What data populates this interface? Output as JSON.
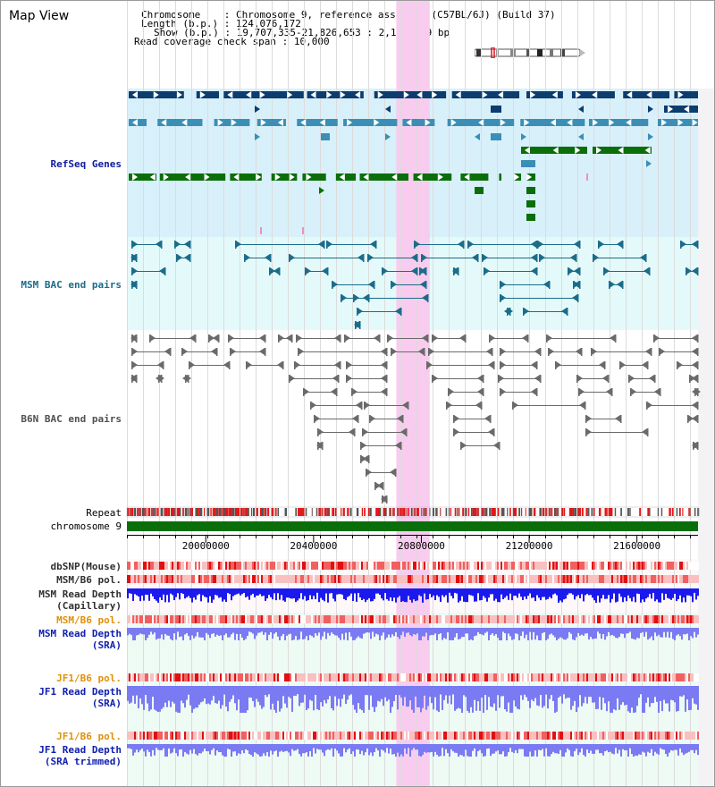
{
  "app": {
    "title": "Map View"
  },
  "info": {
    "chromosome_label": "Chromosome",
    "chromosome_value": "Chromosome 9, reference assembly (C57BL/6J) (Build 37)",
    "length_label": "Length (b.p.)",
    "length_value": "124,076,172",
    "show_label": "Show (b.p.)",
    "show_value": "19,707,335-21,826,653 : 2,119,319 bp",
    "span_label": "Read coverage check span",
    "span_value": "10,000"
  },
  "ideogram": {
    "name": "chromosome-9-ideogram",
    "highlight_color": "#e0101e"
  },
  "view": {
    "range_start_bp": 19707335,
    "range_end_bp": 21826653,
    "highlight_start_bp": 20707000,
    "highlight_end_bp": 20831000,
    "highlight_color": "#f8ccee"
  },
  "axis": {
    "label": "chromosome 9",
    "ticks": [
      {
        "value": 20000000,
        "label": "20000000"
      },
      {
        "value": 20400000,
        "label": "20400000"
      },
      {
        "value": 20800000,
        "label": "20800000"
      },
      {
        "value": 21200000,
        "label": "21200000"
      },
      {
        "value": 21600000,
        "label": "21600000"
      }
    ]
  },
  "tracks": [
    {
      "id": "refseq",
      "label": "RefSeq Genes",
      "color": "#0f1d9c"
    },
    {
      "id": "msm_bac",
      "label": "MSM BAC end pairs",
      "color": "#1b6c8a"
    },
    {
      "id": "b6n_bac",
      "label": "B6N BAC end pairs",
      "color": "#505050"
    },
    {
      "id": "repeat",
      "label": "Repeat",
      "color": "#000000"
    },
    {
      "id": "chromosome",
      "label": "chromosome 9",
      "color": "#000000"
    },
    {
      "id": "dbsnp",
      "label": "dbSNP(Mouse)",
      "color": "#303030"
    },
    {
      "id": "msm_pol_1",
      "label": "MSM/B6 pol.",
      "color": "#303030"
    },
    {
      "id": "msm_depth_cap_1",
      "label": "MSM Read Depth",
      "color": "#303030"
    },
    {
      "id": "msm_depth_cap_2",
      "label": "(Capillary)",
      "color": "#303030"
    },
    {
      "id": "msm_pol_2",
      "label": "MSM/B6 pol.",
      "color": "#e0900a"
    },
    {
      "id": "msm_depth_sra_1",
      "label": "MSM Read Depth",
      "color": "#1020b0"
    },
    {
      "id": "msm_depth_sra_2",
      "label": "(SRA)",
      "color": "#1020b0"
    },
    {
      "id": "jf1_pol_1",
      "label": "JF1/B6 pol.",
      "color": "#e0900a"
    },
    {
      "id": "jf1_depth_sra_1",
      "label": "JF1 Read Depth",
      "color": "#1020b0"
    },
    {
      "id": "jf1_depth_sra_2",
      "label": "(SRA)",
      "color": "#1020b0"
    },
    {
      "id": "jf1_pol_2",
      "label": "JF1/B6 pol.",
      "color": "#e0900a"
    },
    {
      "id": "jf1_depth_trim_1",
      "label": "JF1 Read Depth",
      "color": "#1020b0"
    },
    {
      "id": "jf1_depth_trim_2",
      "label": "(SRA trimmed)",
      "color": "#1020b0"
    }
  ],
  "colors": {
    "gene_dark": "#0d3c6e",
    "gene_mid": "#3b8fb6",
    "gene_green": "#0b6e0b",
    "msm_bac": "#1b6c8a",
    "b6n_bac": "#6a6a6a",
    "depth_dark": "#1a1aee",
    "depth_light": "#7a7af2",
    "snp_red": "#f06060",
    "repeat_red": "#e01818",
    "chrom_green": "#0a6e0a"
  }
}
